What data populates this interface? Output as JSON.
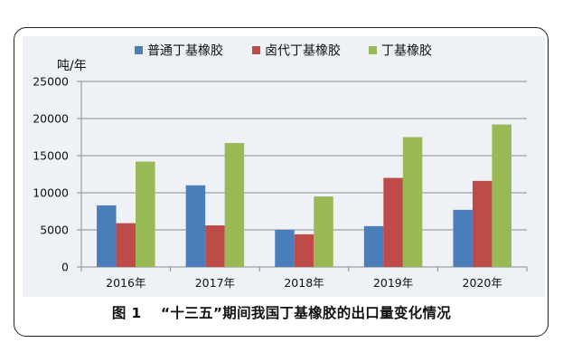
{
  "chart_data": {
    "type": "bar",
    "y_unit": "吨/年",
    "categories": [
      "2016年",
      "2017年",
      "2018年",
      "2019年",
      "2020年"
    ],
    "series": [
      {
        "name": "普通丁基橡胶",
        "color": "#4a7ebb",
        "values": [
          8300,
          11000,
          5000,
          5500,
          7700
        ]
      },
      {
        "name": "卤代丁基橡胶",
        "color": "#be4b48",
        "values": [
          5900,
          5600,
          4400,
          12000,
          11600
        ]
      },
      {
        "name": "丁基橡胶",
        "color": "#98b954",
        "values": [
          14200,
          16700,
          9500,
          17500,
          19200
        ]
      }
    ],
    "ylim": [
      0,
      25000
    ],
    "yticks": [
      "0",
      "5000",
      "10000",
      "15000",
      "20000",
      "25000"
    ],
    "grid": true,
    "legend_position": "top"
  },
  "caption": "图 1 　“十三五”期间我国丁基橡胶的出口量变化情况"
}
